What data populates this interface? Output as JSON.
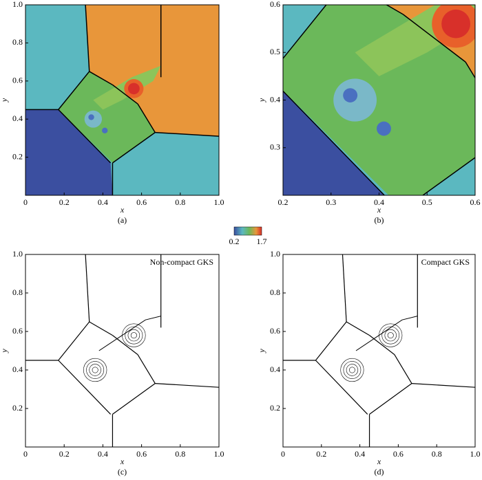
{
  "figure": {
    "panels": [
      {
        "label": "(a)",
        "xlabel": "x",
        "ylabel": "y",
        "xlim": [
          0,
          1
        ],
        "ylim": [
          0,
          1
        ],
        "xticks": [
          0,
          0.2,
          0.4,
          0.6,
          0.8,
          {
            "value": 1,
            "label": "1.0"
          }
        ],
        "yticks": [
          0.2,
          0.4,
          0.6,
          0.8,
          {
            "value": 1,
            "label": "1.0"
          }
        ],
        "style": "filled"
      },
      {
        "label": "(b)",
        "xlabel": "x",
        "ylabel": "y",
        "xlim": [
          0.2,
          0.6
        ],
        "ylim": [
          0.2,
          0.6
        ],
        "xticks": [
          0.2,
          0.3,
          0.4,
          0.5,
          0.6
        ],
        "yticks": [
          0.3,
          0.4,
          0.5,
          0.6
        ],
        "style": "filled"
      },
      {
        "label": "(c)",
        "xlabel": "x",
        "ylabel": "y",
        "xlim": [
          0,
          1
        ],
        "ylim": [
          0,
          1
        ],
        "xticks": [
          0,
          0.2,
          0.4,
          0.6,
          0.8,
          {
            "value": 1,
            "label": "1.0"
          }
        ],
        "yticks": [
          0.2,
          0.4,
          0.6,
          0.8,
          {
            "value": 1,
            "label": "1.0"
          }
        ],
        "style": "lines",
        "annotation": "Non-compact GKS"
      },
      {
        "label": "(d)",
        "xlabel": "x",
        "ylabel": "y",
        "xlim": [
          0,
          1
        ],
        "ylim": [
          0,
          1
        ],
        "xticks": [
          0,
          0.2,
          0.4,
          0.6,
          0.8,
          {
            "value": 1,
            "label": "1.0"
          }
        ],
        "yticks": [
          0.2,
          0.4,
          0.6,
          0.8,
          {
            "value": 1,
            "label": "1.0"
          }
        ],
        "style": "lines",
        "annotation": "Compact GKS"
      }
    ],
    "colorbar": {
      "min": 0.2,
      "max": 1.7
    }
  }
}
